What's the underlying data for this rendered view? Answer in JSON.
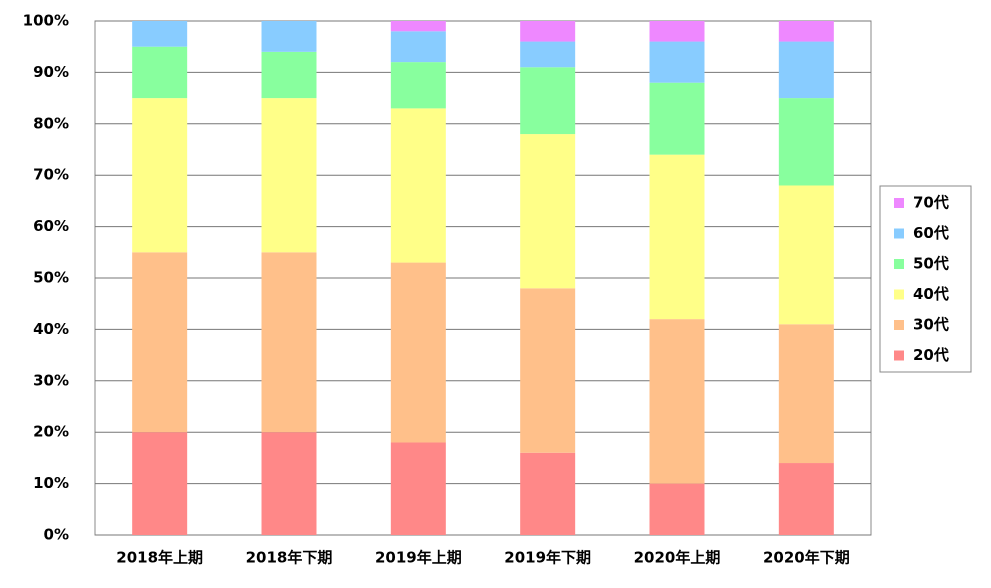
{
  "chart_data": {
    "type": "stacked_bar",
    "categories": [
      "2018年上期",
      "2018年下期",
      "2019年上期",
      "2019年下期",
      "2020年上期",
      "2020年下期"
    ],
    "series": [
      {
        "name": "20代",
        "color": "#ff8888",
        "values": [
          20,
          20,
          18,
          16,
          10,
          14
        ]
      },
      {
        "name": "30代",
        "color": "#ffc08a",
        "values": [
          35,
          35,
          35,
          32,
          32,
          27
        ]
      },
      {
        "name": "40代",
        "color": "#ffff88",
        "values": [
          30,
          30,
          30,
          30,
          32,
          27
        ]
      },
      {
        "name": "50代",
        "color": "#88ff9e",
        "values": [
          10,
          9,
          9,
          13,
          14,
          17
        ]
      },
      {
        "name": "60代",
        "color": "#88ccff",
        "values": [
          5,
          6,
          6,
          5,
          8,
          11
        ]
      },
      {
        "name": "70代",
        "color": "#ee88ff",
        "values": [
          0,
          0,
          2,
          4,
          4,
          4
        ]
      }
    ],
    "ylim": [
      0,
      100
    ],
    "yticks": [
      {
        "value": 0,
        "label": "0%"
      },
      {
        "value": 10,
        "label": "10%"
      },
      {
        "value": 20,
        "label": "20%"
      },
      {
        "value": 30,
        "label": "30%"
      },
      {
        "value": 40,
        "label": "40%"
      },
      {
        "value": 50,
        "label": "50%"
      },
      {
        "value": 60,
        "label": "60%"
      },
      {
        "value": 70,
        "label": "70%"
      },
      {
        "value": 80,
        "label": "80%"
      },
      {
        "value": 90,
        "label": "90%"
      },
      {
        "value": 100,
        "label": "100%"
      }
    ],
    "grid": true,
    "legend": "right"
  }
}
